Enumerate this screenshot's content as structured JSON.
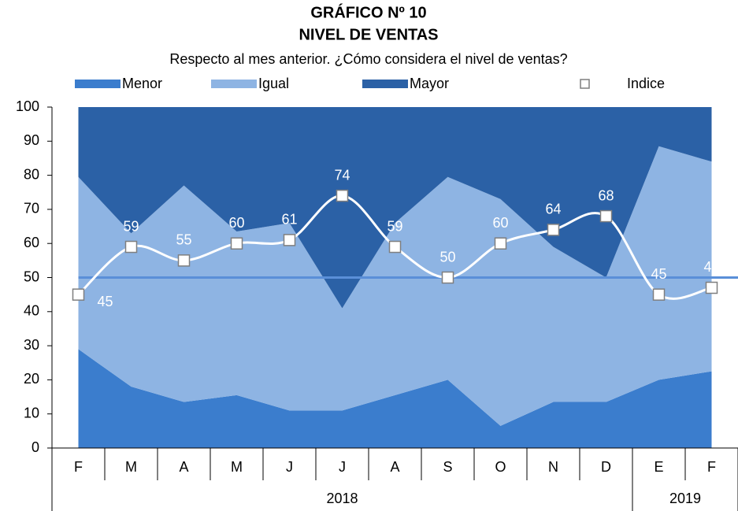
{
  "chart_data": {
    "type": "stacked-area-line",
    "title": "GRÁFICO Nº 10",
    "subtitle": "NIVEL DE VENTAS",
    "caption": "Respecto al mes anterior. ¿Cómo considera el nivel de ventas?",
    "categories": [
      "F",
      "M",
      "A",
      "M",
      "J",
      "J",
      "A",
      "S",
      "O",
      "N",
      "D",
      "E",
      "F"
    ],
    "groups": [
      {
        "label": "2018",
        "span": 11
      },
      {
        "label": "2019",
        "span": 2
      }
    ],
    "series": [
      {
        "name": "Menor",
        "color": "#3b7dcd",
        "values": [
          29,
          18,
          13.5,
          15.5,
          11,
          11,
          15.5,
          20,
          6.5,
          13.5,
          13.5,
          20,
          22.5
        ]
      },
      {
        "name": "Igual",
        "color": "#8eb4e3",
        "values": [
          50.5,
          45,
          63.5,
          48,
          55,
          30,
          50.5,
          59.5,
          66.5,
          45.5,
          36.5,
          68.5,
          61.5
        ]
      },
      {
        "name": "Mayor",
        "color": "#2b61a6",
        "values": [
          20.5,
          37,
          23,
          36.5,
          34,
          59,
          34,
          20.5,
          27,
          41,
          50,
          11.5,
          16
        ]
      }
    ],
    "index": {
      "name": "Indice",
      "color": "#ffffff",
      "values": [
        45,
        59,
        55,
        60,
        61,
        74,
        59,
        50,
        60,
        64,
        68,
        45,
        47
      ]
    },
    "reference_line": 50,
    "reference_color": "#5a8fd8",
    "ylim": [
      0,
      100
    ],
    "yticks": [
      0,
      10,
      20,
      30,
      40,
      50,
      60,
      70,
      80,
      90,
      100
    ]
  }
}
